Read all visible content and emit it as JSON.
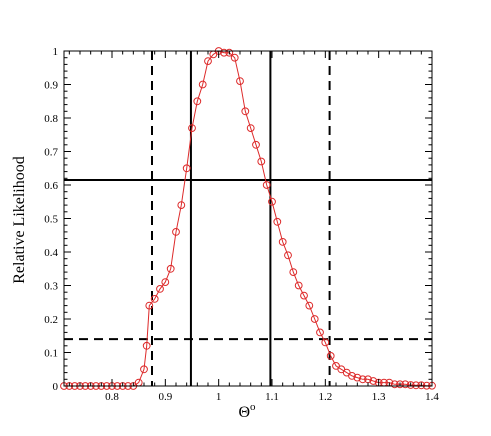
{
  "chart_data": {
    "type": "line",
    "title": "",
    "xlabel": "Θ",
    "xlabel_superscript": "o",
    "ylabel": "Relative Likelihood",
    "xlim": [
      0.71,
      1.4
    ],
    "ylim": [
      0,
      1
    ],
    "xticks": [
      0.8,
      0.9,
      1,
      1.1,
      1.2,
      1.3,
      1.4
    ],
    "xtick_labels": [
      "0.8",
      "0.9",
      "1",
      "1.1",
      "1.2",
      "1.3",
      "1.4"
    ],
    "yticks": [
      0,
      0.1,
      0.2,
      0.3,
      0.4,
      0.5,
      0.6,
      0.7,
      0.8,
      0.9,
      1
    ],
    "ytick_labels": [
      "0",
      "0.1",
      "0.2",
      "0.3",
      "0.4",
      "0.5",
      "0.6",
      "0.7",
      "0.8",
      "0.9",
      "1"
    ],
    "grid": false,
    "legend": "none",
    "series": [
      {
        "marker": "open-circle",
        "color": "#dd2a2a",
        "x": [
          0.71,
          0.72,
          0.73,
          0.74,
          0.75,
          0.76,
          0.77,
          0.78,
          0.79,
          0.8,
          0.81,
          0.82,
          0.83,
          0.84,
          0.85,
          0.86,
          0.865,
          0.87,
          0.88,
          0.89,
          0.9,
          0.91,
          0.92,
          0.93,
          0.94,
          0.95,
          0.96,
          0.97,
          0.98,
          0.99,
          1.0,
          1.01,
          1.02,
          1.03,
          1.04,
          1.05,
          1.06,
          1.07,
          1.08,
          1.09,
          1.1,
          1.11,
          1.12,
          1.13,
          1.14,
          1.15,
          1.16,
          1.17,
          1.18,
          1.19,
          1.2,
          1.21,
          1.22,
          1.23,
          1.24,
          1.25,
          1.26,
          1.27,
          1.28,
          1.29,
          1.3,
          1.31,
          1.32,
          1.33,
          1.34,
          1.35,
          1.36,
          1.37,
          1.38,
          1.39,
          1.4
        ],
        "y": [
          0,
          0,
          0,
          0,
          0,
          0,
          0,
          0,
          0,
          0,
          0,
          0,
          0,
          0,
          0.01,
          0.05,
          0.12,
          0.24,
          0.26,
          0.29,
          0.31,
          0.35,
          0.46,
          0.54,
          0.65,
          0.77,
          0.85,
          0.9,
          0.97,
          0.99,
          1.0,
          0.995,
          0.995,
          0.98,
          0.91,
          0.82,
          0.77,
          0.72,
          0.67,
          0.6,
          0.55,
          0.49,
          0.43,
          0.39,
          0.34,
          0.3,
          0.27,
          0.24,
          0.2,
          0.16,
          0.13,
          0.09,
          0.06,
          0.05,
          0.04,
          0.03,
          0.025,
          0.02,
          0.02,
          0.015,
          0.01,
          0.01,
          0.01,
          0.005,
          0.005,
          0.005,
          0.003,
          0.002,
          0.002,
          0.001,
          0.001
        ]
      }
    ],
    "reference_lines": [
      {
        "orientation": "vertical",
        "value": 0.875,
        "style": "dashed"
      },
      {
        "orientation": "vertical",
        "value": 0.948,
        "style": "solid"
      },
      {
        "orientation": "vertical",
        "value": 1.097,
        "style": "solid"
      },
      {
        "orientation": "vertical",
        "value": 1.208,
        "style": "dashed"
      },
      {
        "orientation": "horizontal",
        "value": 0.615,
        "style": "solid"
      },
      {
        "orientation": "horizontal",
        "value": 0.14,
        "style": "dashed"
      }
    ]
  }
}
